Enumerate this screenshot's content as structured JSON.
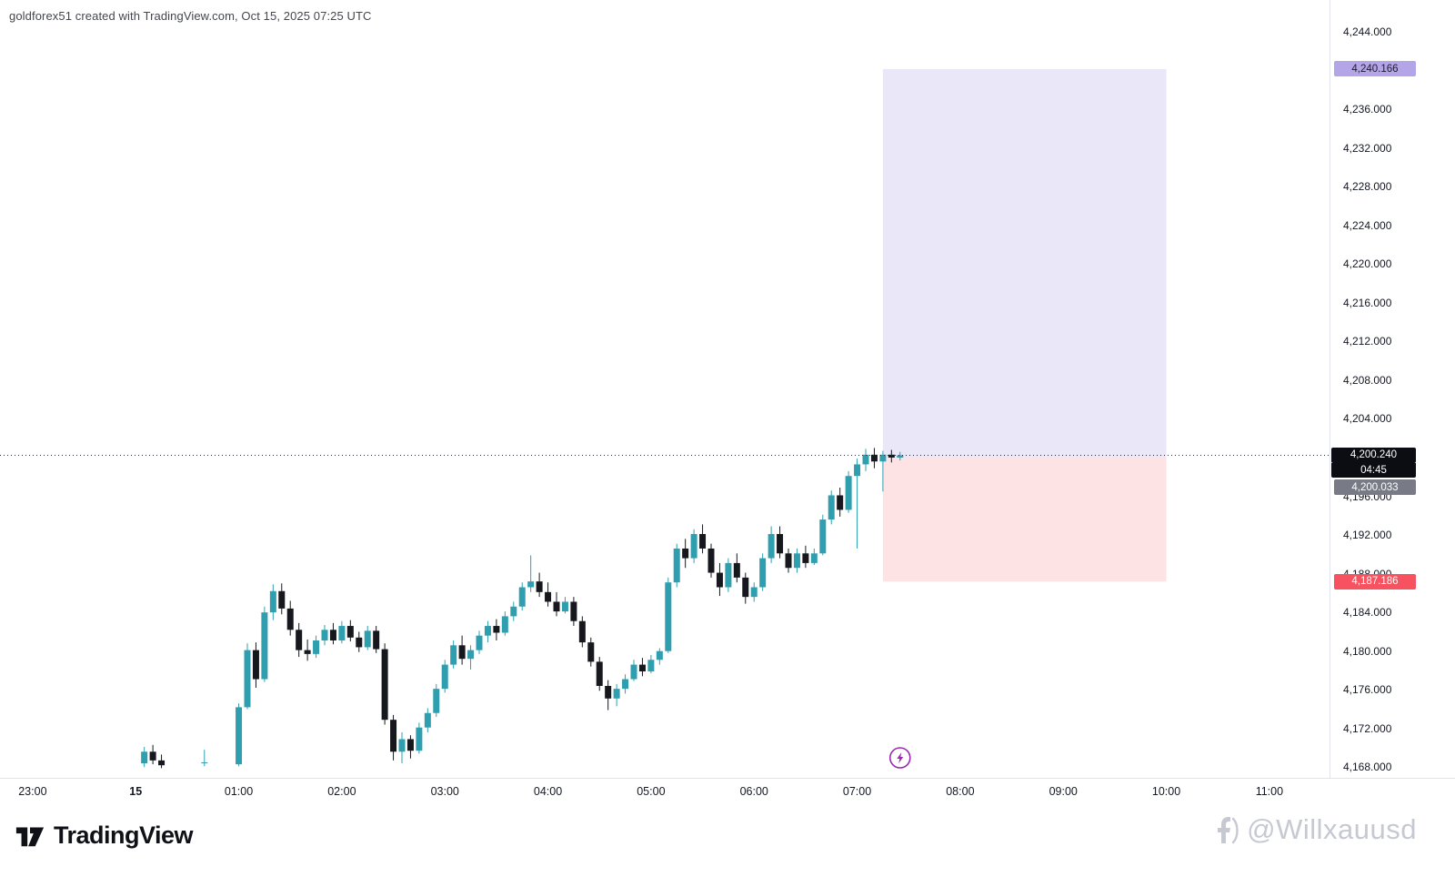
{
  "header": {
    "title": "goldforex51 created with TradingView.com, Oct 15, 2025 07:25 UTC"
  },
  "footer": {
    "brand": "TradingView",
    "watermark": "@Willxauusd"
  },
  "colors": {
    "up": "#2f9faf",
    "down": "#16181d",
    "profit_fill": "rgba(124,104,217,0.16)",
    "stop_fill": "rgba(247,82,95,0.16)",
    "target_badge_bg": "#b4a5e8",
    "target_badge_text": "#1e1b2e",
    "price_badge_bg": "#0b0d12",
    "entry_badge_bg": "#787b86",
    "stop_badge_bg": "#f7525f",
    "axis_text": "#131722",
    "axis_border": "#e0e3eb",
    "price_line": "#2a2e39",
    "marker_purple": "#9c27b0"
  },
  "chart_data": {
    "type": "candlestick",
    "title": "goldforex51 created with TradingView.com, Oct 15, 2025 07:25 UTC",
    "grid": "off",
    "legend": "none",
    "price_range": {
      "min": 4166.9,
      "max": 4247.3
    },
    "time_range": {
      "start_min": -79,
      "end_min": 695
    },
    "y_ticks": [
      4168,
      4172,
      4176,
      4180,
      4184,
      4188,
      4192,
      4196,
      4200,
      4204,
      4208,
      4212,
      4216,
      4220,
      4224,
      4228,
      4232,
      4236,
      4240,
      4244
    ],
    "x_ticks": [
      {
        "label": "23:00",
        "hour": -1
      },
      {
        "label": "15",
        "hour": 0,
        "bold": true
      },
      {
        "label": "01:00",
        "hour": 1
      },
      {
        "label": "02:00",
        "hour": 2
      },
      {
        "label": "03:00",
        "hour": 3
      },
      {
        "label": "04:00",
        "hour": 4
      },
      {
        "label": "05:00",
        "hour": 5
      },
      {
        "label": "06:00",
        "hour": 6
      },
      {
        "label": "07:00",
        "hour": 7
      },
      {
        "label": "08:00",
        "hour": 8
      },
      {
        "label": "09:00",
        "hour": 9
      },
      {
        "label": "10:00",
        "hour": 10
      },
      {
        "label": "11:00",
        "hour": 11
      }
    ],
    "current_price": {
      "value": 4200.24,
      "label": "4,200.240",
      "countdown": "04:45"
    },
    "position_tool": {
      "type": "long-position",
      "entry": 4200.033,
      "entry_label": "4,200.033",
      "target": 4240.166,
      "target_label": "4,240.166",
      "stop": 4187.186,
      "stop_label": "4,187.186",
      "time_start": "07:15",
      "time_end": "10:00"
    },
    "marker": {
      "time": "07:25",
      "type": "lightning"
    },
    "candles": [
      [
        "00:05",
        4168.4,
        4170.1,
        4168.0,
        4169.6
      ],
      [
        "00:10",
        4169.6,
        4170.3,
        4168.3,
        4168.7
      ],
      [
        "00:15",
        4168.7,
        4169.3,
        4167.9,
        4168.2
      ],
      [
        "00:40",
        4168.5,
        4169.8,
        4168.1,
        4168.5
      ],
      [
        "01:00",
        4168.3,
        4174.6,
        4168.1,
        4174.2
      ],
      [
        "01:05",
        4174.2,
        4180.8,
        4174.0,
        4180.1
      ],
      [
        "01:10",
        4180.1,
        4180.9,
        4176.2,
        4177.1
      ],
      [
        "01:15",
        4177.1,
        4184.6,
        4176.8,
        4184.0
      ],
      [
        "01:20",
        4184.0,
        4186.9,
        4183.2,
        4186.2
      ],
      [
        "01:25",
        4186.2,
        4187.0,
        4183.8,
        4184.4
      ],
      [
        "01:30",
        4184.4,
        4185.2,
        4181.6,
        4182.2
      ],
      [
        "01:35",
        4182.2,
        4182.9,
        4179.4,
        4180.1
      ],
      [
        "01:40",
        4180.1,
        4181.2,
        4179.0,
        4179.7
      ],
      [
        "01:45",
        4179.7,
        4181.6,
        4179.3,
        4181.1
      ],
      [
        "01:50",
        4181.1,
        4182.7,
        4180.6,
        4182.2
      ],
      [
        "01:55",
        4182.2,
        4182.9,
        4180.7,
        4181.1
      ],
      [
        "02:00",
        4181.1,
        4183.1,
        4180.8,
        4182.6
      ],
      [
        "02:05",
        4182.6,
        4183.2,
        4181.0,
        4181.4
      ],
      [
        "02:10",
        4181.4,
        4182.0,
        4179.9,
        4180.4
      ],
      [
        "02:15",
        4180.4,
        4182.6,
        4180.1,
        4182.1
      ],
      [
        "02:20",
        4182.1,
        4182.6,
        4179.8,
        4180.2
      ],
      [
        "02:25",
        4180.2,
        4180.8,
        4172.4,
        4172.9
      ],
      [
        "02:30",
        4172.9,
        4173.4,
        4168.7,
        4169.6
      ],
      [
        "02:35",
        4169.6,
        4171.6,
        4168.4,
        4170.9
      ],
      [
        "02:40",
        4170.9,
        4171.3,
        4168.9,
        4169.7
      ],
      [
        "02:45",
        4169.7,
        4172.6,
        4169.4,
        4172.1
      ],
      [
        "02:50",
        4172.1,
        4174.1,
        4171.6,
        4173.6
      ],
      [
        "02:55",
        4173.6,
        4176.6,
        4173.2,
        4176.1
      ],
      [
        "03:00",
        4176.1,
        4179.1,
        4175.7,
        4178.6
      ],
      [
        "03:05",
        4178.6,
        4181.1,
        4178.2,
        4180.6
      ],
      [
        "03:10",
        4180.6,
        4181.6,
        4178.6,
        4179.2
      ],
      [
        "03:15",
        4179.2,
        4180.6,
        4178.1,
        4180.1
      ],
      [
        "03:20",
        4180.1,
        4182.1,
        4179.7,
        4181.6
      ],
      [
        "03:25",
        4181.6,
        4183.1,
        4180.9,
        4182.6
      ],
      [
        "03:30",
        4182.6,
        4183.3,
        4181.1,
        4181.9
      ],
      [
        "03:35",
        4181.9,
        4184.1,
        4181.6,
        4183.6
      ],
      [
        "03:40",
        4183.6,
        4185.1,
        4183.1,
        4184.6
      ],
      [
        "03:45",
        4184.6,
        4187.1,
        4184.2,
        4186.6
      ],
      [
        "03:50",
        4186.6,
        4189.9,
        4186.1,
        4187.2
      ],
      [
        "03:55",
        4187.2,
        4188.1,
        4185.6,
        4186.1
      ],
      [
        "04:00",
        4186.1,
        4187.1,
        4184.6,
        4185.1
      ],
      [
        "04:05",
        4185.1,
        4186.1,
        4183.6,
        4184.1
      ],
      [
        "04:10",
        4184.1,
        4185.6,
        4183.9,
        4185.1
      ],
      [
        "04:15",
        4185.1,
        4185.6,
        4182.6,
        4183.1
      ],
      [
        "04:20",
        4183.1,
        4183.6,
        4180.4,
        4180.9
      ],
      [
        "04:25",
        4180.9,
        4181.4,
        4178.4,
        4178.9
      ],
      [
        "04:30",
        4178.9,
        4179.4,
        4175.9,
        4176.4
      ],
      [
        "04:35",
        4176.4,
        4177.0,
        4173.9,
        4175.1
      ],
      [
        "04:40",
        4175.1,
        4176.6,
        4174.3,
        4176.1
      ],
      [
        "04:45",
        4176.1,
        4177.6,
        4175.6,
        4177.1
      ],
      [
        "04:50",
        4177.1,
        4179.1,
        4176.9,
        4178.6
      ],
      [
        "04:55",
        4178.6,
        4179.3,
        4177.4,
        4177.9
      ],
      [
        "05:00",
        4177.9,
        4179.6,
        4177.7,
        4179.1
      ],
      [
        "05:05",
        4179.1,
        4180.3,
        4178.6,
        4180.0
      ],
      [
        "05:10",
        4180.0,
        4187.6,
        4179.8,
        4187.1
      ],
      [
        "05:15",
        4187.1,
        4191.1,
        4186.6,
        4190.6
      ],
      [
        "05:20",
        4190.6,
        4191.6,
        4188.6,
        4189.6
      ],
      [
        "05:25",
        4189.6,
        4192.6,
        4189.1,
        4192.1
      ],
      [
        "05:30",
        4192.1,
        4193.1,
        4190.1,
        4190.6
      ],
      [
        "05:35",
        4190.6,
        4191.1,
        4187.6,
        4188.1
      ],
      [
        "05:40",
        4188.1,
        4189.1,
        4185.7,
        4186.6
      ],
      [
        "05:45",
        4186.6,
        4189.6,
        4186.1,
        4189.1
      ],
      [
        "05:50",
        4189.1,
        4190.1,
        4187.1,
        4187.6
      ],
      [
        "05:55",
        4187.6,
        4188.1,
        4184.9,
        4185.6
      ],
      [
        "06:00",
        4185.6,
        4187.1,
        4185.1,
        4186.6
      ],
      [
        "06:05",
        4186.6,
        4190.1,
        4186.2,
        4189.6
      ],
      [
        "06:10",
        4189.6,
        4192.9,
        4189.1,
        4192.1
      ],
      [
        "06:15",
        4192.1,
        4192.9,
        4189.6,
        4190.1
      ],
      [
        "06:20",
        4190.1,
        4190.6,
        4188.1,
        4188.6
      ],
      [
        "06:25",
        4188.6,
        4190.6,
        4188.1,
        4190.1
      ],
      [
        "06:30",
        4190.1,
        4190.9,
        4188.6,
        4189.1
      ],
      [
        "06:35",
        4189.1,
        4190.6,
        4188.9,
        4190.1
      ],
      [
        "06:40",
        4190.1,
        4194.1,
        4189.9,
        4193.6
      ],
      [
        "06:45",
        4193.6,
        4196.6,
        4193.1,
        4196.1
      ],
      [
        "06:50",
        4196.1,
        4196.9,
        4193.9,
        4194.6
      ],
      [
        "06:55",
        4194.6,
        4198.6,
        4194.3,
        4198.1
      ],
      [
        "07:00",
        4198.1,
        4199.9,
        4190.6,
        4199.3
      ],
      [
        "07:05",
        4199.3,
        4200.9,
        4198.6,
        4200.3
      ],
      [
        "07:10",
        4200.3,
        4201.0,
        4198.9,
        4199.6
      ],
      [
        "07:15",
        4199.6,
        4200.7,
        4196.5,
        4200.3
      ],
      [
        "07:20",
        4200.3,
        4200.8,
        4199.5,
        4200.0
      ],
      [
        "07:25",
        4200.0,
        4200.6,
        4199.7,
        4200.24
      ]
    ]
  }
}
